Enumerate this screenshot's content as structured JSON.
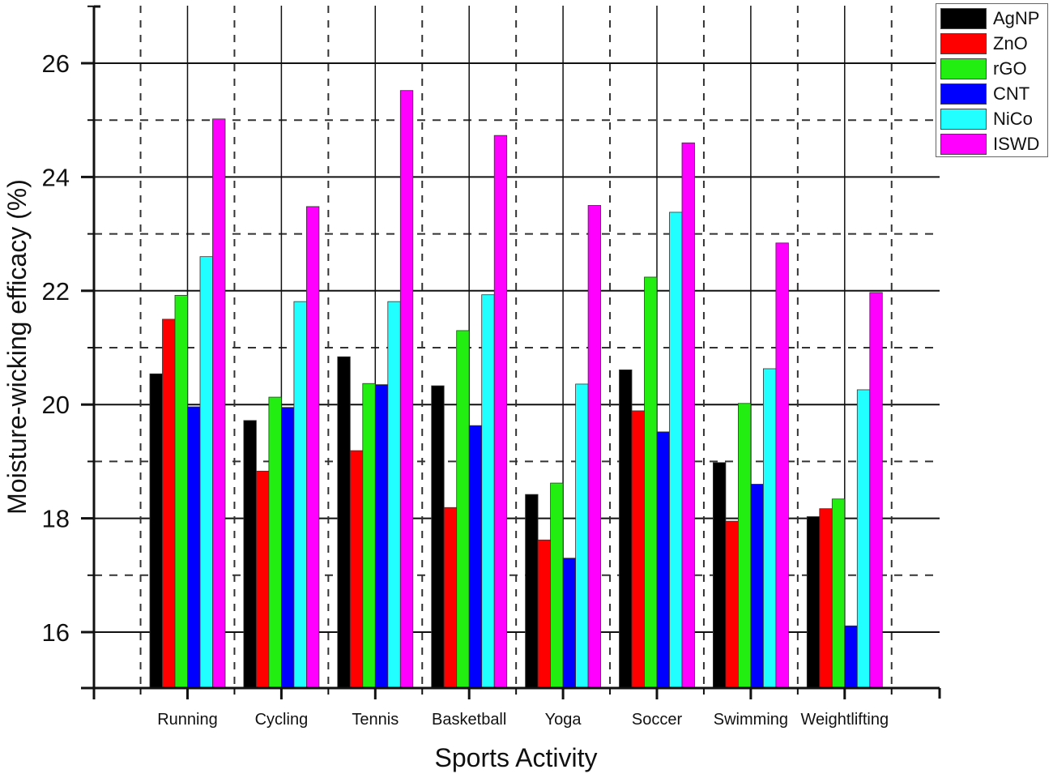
{
  "chart_data": {
    "type": "bar",
    "title": "",
    "xlabel": "Sports Activity",
    "ylabel": "Moisture-wicking efficacy (%)",
    "ylim": [
      15,
      27
    ],
    "yticks": [
      16,
      18,
      20,
      22,
      24,
      26
    ],
    "grid": true,
    "legend_position": "top-right",
    "categories": [
      "Running",
      "Cycling",
      "Tennis",
      "Basketball",
      "Yoga",
      "Soccer",
      "Swimming",
      "Weightlifting"
    ],
    "series": [
      {
        "name": "AgNP",
        "color": "#000000",
        "values": [
          20.54,
          19.72,
          20.84,
          20.33,
          18.42,
          20.61,
          18.98,
          18.03
        ]
      },
      {
        "name": "ZnO",
        "color": "#ff0000",
        "values": [
          21.5,
          18.83,
          19.19,
          18.19,
          17.62,
          19.89,
          17.95,
          18.17
        ]
      },
      {
        "name": "rGO",
        "color": "#22ee11",
        "values": [
          21.92,
          20.13,
          20.37,
          21.3,
          18.62,
          22.24,
          20.02,
          18.34
        ]
      },
      {
        "name": "CNT",
        "color": "#0000ff",
        "values": [
          19.96,
          19.95,
          20.35,
          19.63,
          17.3,
          19.52,
          18.6,
          16.11
        ]
      },
      {
        "name": "NiCo",
        "color": "#22ffff",
        "values": [
          22.6,
          21.81,
          21.81,
          21.93,
          20.36,
          23.38,
          20.63,
          20.26
        ]
      },
      {
        "name": "ISWD",
        "color": "#ff00ff",
        "values": [
          25.02,
          23.48,
          25.52,
          24.73,
          23.5,
          24.6,
          22.84,
          21.97
        ]
      }
    ]
  }
}
